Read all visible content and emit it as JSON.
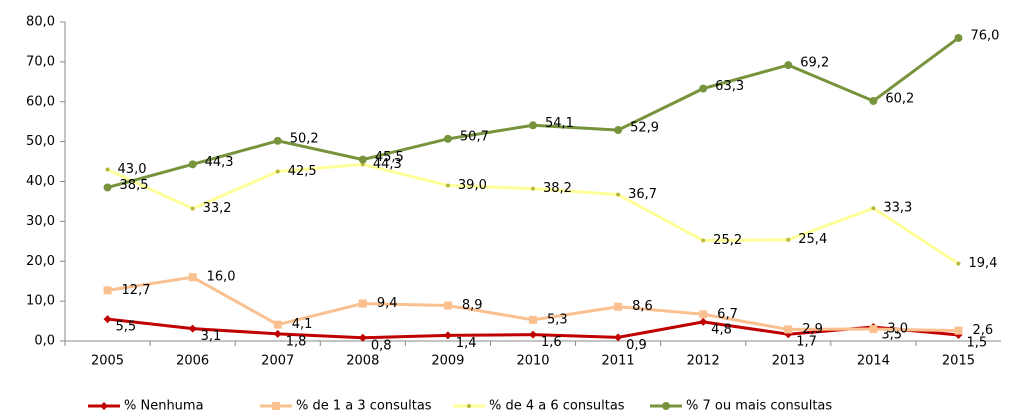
{
  "chart_data": {
    "type": "line",
    "categories": [
      "2005",
      "2006",
      "2007",
      "2008",
      "2009",
      "2010",
      "2011",
      "2012",
      "2013",
      "2014",
      "2015"
    ],
    "series": [
      {
        "name": "% Nenhuma",
        "color": "#c00000",
        "marker": "diamond",
        "values": [
          5.5,
          3.1,
          1.8,
          0.8,
          1.4,
          1.6,
          0.9,
          4.8,
          1.7,
          3.5,
          1.5
        ],
        "value_labels": [
          "5,5",
          "3,1",
          "1,8",
          "0,8",
          "1,4",
          "1,6",
          "0,9",
          "4,8",
          "1,7",
          "3,5",
          "1,5"
        ]
      },
      {
        "name": "% de 1 a 3 consultas",
        "color": "#fac090",
        "marker": "square",
        "values": [
          12.7,
          16.0,
          4.1,
          9.4,
          8.9,
          5.3,
          8.6,
          6.7,
          2.9,
          3.0,
          2.6
        ],
        "value_labels": [
          "12,7",
          "16,0",
          "4,1",
          "9,4",
          "8,9",
          "5,3",
          "8,6",
          "6,7",
          "2,9",
          "3,0",
          "2,6"
        ]
      },
      {
        "name": "% de 4 a 6 consultas",
        "color": "#ffff99",
        "marker": "dot",
        "values": [
          43.0,
          33.2,
          42.5,
          44.3,
          39.0,
          38.2,
          36.7,
          25.2,
          25.4,
          33.3,
          19.4
        ],
        "value_labels": [
          "43,0",
          "33,2",
          "42,5",
          "44,3",
          "39,0",
          "38,2",
          "36,7",
          "25,2",
          "25,4",
          "33,3",
          "19,4"
        ]
      },
      {
        "name": "% 7 ou mais consultas",
        "color": "#77933c",
        "marker": "circle",
        "values": [
          38.5,
          44.3,
          50.2,
          45.5,
          50.7,
          54.1,
          52.9,
          63.3,
          69.2,
          60.2,
          76.0
        ],
        "value_labels": [
          "38,5",
          "44,3",
          "50,2",
          "45,5",
          "50,7",
          "54,1",
          "52,9",
          "63,3",
          "69,2",
          "60,2",
          "76,0"
        ]
      }
    ],
    "ylim": [
      0,
      80
    ],
    "yticks": [
      {
        "value": 0,
        "label": "0,0"
      },
      {
        "value": 10,
        "label": "10,0"
      },
      {
        "value": 20,
        "label": "20,0"
      },
      {
        "value": 30,
        "label": "30,0"
      },
      {
        "value": 40,
        "label": "40,0"
      },
      {
        "value": 50,
        "label": "50,0"
      },
      {
        "value": 60,
        "label": "60,0"
      },
      {
        "value": 70,
        "label": "70,0"
      },
      {
        "value": 80,
        "label": "80,0"
      }
    ],
    "grid": false,
    "legend": "bottom"
  }
}
